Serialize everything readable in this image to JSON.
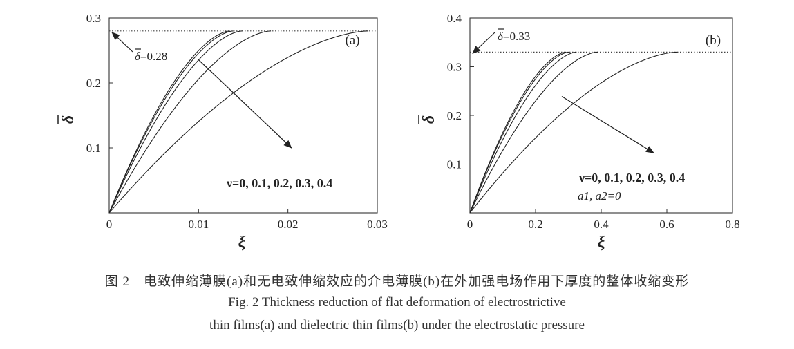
{
  "chart_data": [
    {
      "type": "line",
      "panel_label": "(a)",
      "xlabel": "ξ",
      "ylabel": "δ",
      "xlim": [
        0,
        0.03
      ],
      "ylim": [
        0,
        0.3
      ],
      "xticks": [
        "0",
        "0.01",
        "0.02",
        "0.03"
      ],
      "yticks": [
        "0.1",
        "0.2",
        "0.3"
      ],
      "xtick_values": [
        0,
        0.01,
        0.02,
        0.03
      ],
      "ytick_values": [
        0.1,
        0.2,
        0.3
      ],
      "reference_line": {
        "y": 0.28,
        "label": "=0.28",
        "style": "dotted"
      },
      "annotation": "ν=0, 0.1, 0.2, 0.3, 0.4",
      "arrow": {
        "from": [
          0.0099,
          0.237
        ],
        "to": [
          0.0204,
          0.1
        ]
      },
      "series": [
        {
          "x_end": 0.0135,
          "y_end": 0.28
        },
        {
          "x_end": 0.0139,
          "y_end": 0.28
        },
        {
          "x_end": 0.0149,
          "y_end": 0.28
        },
        {
          "x_end": 0.0181,
          "y_end": 0.28
        },
        {
          "x_end": 0.029,
          "y_end": 0.28
        }
      ]
    },
    {
      "type": "line",
      "panel_label": "(b)",
      "xlabel": "ξ",
      "ylabel": "δ",
      "xlim": [
        0,
        0.8
      ],
      "ylim": [
        0,
        0.4
      ],
      "xticks": [
        "0",
        "0.2",
        "0.4",
        "0.6",
        "0.8"
      ],
      "yticks": [
        "0.1",
        "0.2",
        "0.3",
        "0.4"
      ],
      "xtick_values": [
        0,
        0.2,
        0.4,
        0.6,
        0.8
      ],
      "ytick_values": [
        0.1,
        0.2,
        0.3,
        0.4
      ],
      "reference_line": {
        "y": 0.33,
        "label": "=0.33",
        "style": "dotted"
      },
      "annotation": "ν=0, 0.1, 0.2, 0.3, 0.4",
      "annotation2": "a1, a2=0",
      "arrow": {
        "from": [
          0.28,
          0.239
        ],
        "to": [
          0.56,
          0.123
        ]
      },
      "series": [
        {
          "x_end": 0.293,
          "y_end": 0.33
        },
        {
          "x_end": 0.302,
          "y_end": 0.33
        },
        {
          "x_end": 0.325,
          "y_end": 0.33
        },
        {
          "x_end": 0.389,
          "y_end": 0.33
        },
        {
          "x_end": 0.632,
          "y_end": 0.33
        }
      ]
    }
  ],
  "captions": {
    "zh": "图 2　电致伸缩薄膜(a)和无电致伸缩效应的介电薄膜(b)在外加强电场作用下厚度的整体收缩变形",
    "en1": "Fig. 2   Thickness reduction of flat deformation of electrostrictive",
    "en2": "thin films(a) and dielectric thin films(b) under the electrostatic pressure"
  }
}
